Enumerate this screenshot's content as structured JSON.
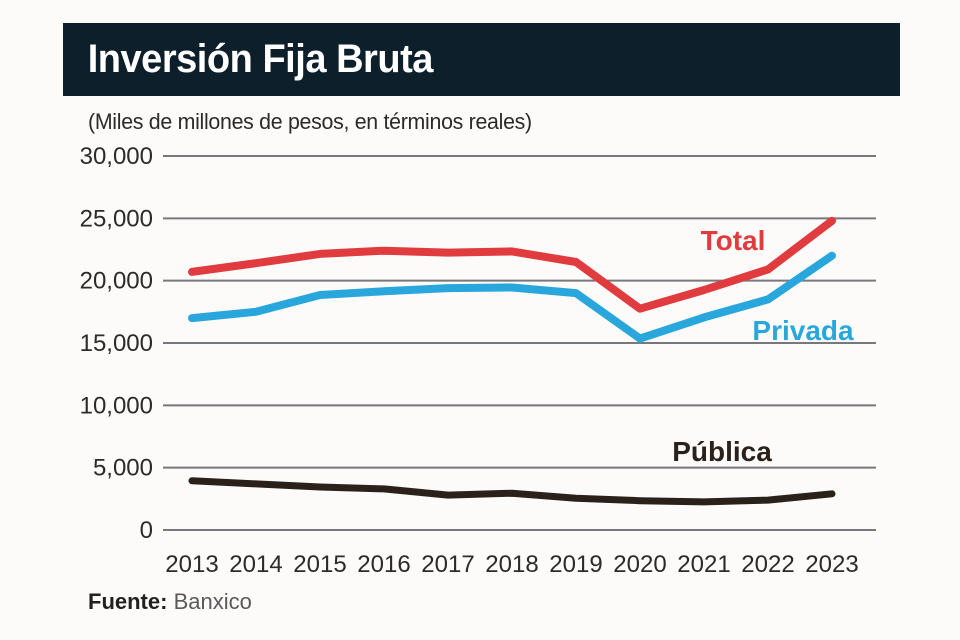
{
  "header": {
    "title": "Inversión Fija Bruta"
  },
  "subtitle": "(Miles de millones de pesos, en términos reales)",
  "source": {
    "label": "Fuente:",
    "name": "Banxico"
  },
  "colors": {
    "header_bg": "#0d1f2b",
    "total": "#e03b3e",
    "privada": "#29a7dc",
    "publica": "#2b211b",
    "grid": "#77787b",
    "axis_text": "#2d2a28",
    "source_name": "#58595b"
  },
  "chart_data": {
    "type": "line",
    "title": "Inversión Fija Bruta",
    "subtitle": "(Miles de millones de pesos, en términos reales)",
    "x": [
      "2013",
      "2014",
      "2015",
      "2016",
      "2017",
      "2018",
      "2019",
      "2020",
      "2021",
      "2022",
      "2023"
    ],
    "ylim": [
      0,
      30000
    ],
    "yticks": [
      0,
      5000,
      10000,
      15000,
      20000,
      25000,
      30000
    ],
    "grid": "horizontal",
    "legend": "inline-labels",
    "series": [
      {
        "name": "Total",
        "color": "#e03b3e",
        "values": [
          20700,
          21400,
          22150,
          22400,
          22250,
          22350,
          21500,
          17750,
          19250,
          20900,
          24800
        ]
      },
      {
        "name": "Privada",
        "color": "#29a7dc",
        "values": [
          17000,
          17500,
          18850,
          19150,
          19400,
          19450,
          19000,
          15350,
          17050,
          18500,
          22000
        ]
      },
      {
        "name": "Pública",
        "color": "#2b211b",
        "values": [
          3950,
          3700,
          3450,
          3300,
          2800,
          2950,
          2550,
          2350,
          2250,
          2400,
          2900
        ]
      }
    ],
    "source": "Fuente: Banxico"
  }
}
